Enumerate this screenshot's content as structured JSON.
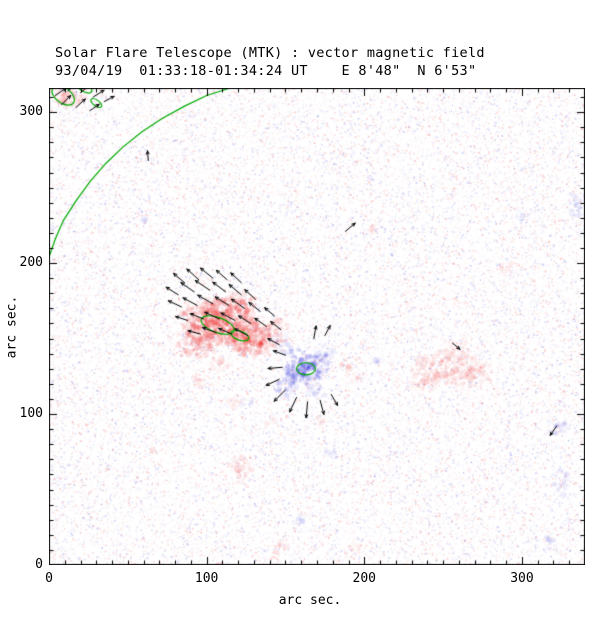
{
  "chart_data": {
    "type": "heatmap",
    "title": "Solar Flare Telescope (MTK) : vector magnetic field",
    "subtitle": "93/04/19  01:33:18-01:34:24 UT    E 8'48\"  N 6'53\"",
    "xlabel": "arc sec.",
    "ylabel": "arc sec.",
    "xlim": [
      0,
      340
    ],
    "ylim": [
      0,
      316
    ],
    "xticks": [
      0,
      100,
      200,
      300
    ],
    "yticks": [
      0,
      100,
      200,
      300
    ],
    "minor_tick_step": 10,
    "major_tick_step": 100,
    "colors": {
      "background": "#ffffff",
      "positive_polarity": "#ee2222",
      "negative_polarity": "#3535dd",
      "contour": "#00aa00",
      "vectors": "#000000",
      "axis": "#000000"
    },
    "noise": {
      "count": 30000,
      "max_alpha": 0.22,
      "dark_count": 2200
    },
    "positive_regions": [
      [
        108,
        161,
        23,
        15,
        1.0
      ],
      [
        130,
        150,
        17,
        11,
        0.95
      ],
      [
        94,
        147,
        13,
        9,
        0.7
      ],
      [
        120,
        172,
        13,
        8,
        0.65
      ],
      [
        147,
        160,
        6,
        5,
        0.5
      ],
      [
        107,
        133,
        7,
        5,
        0.45
      ],
      [
        96,
        122,
        6,
        5,
        0.4
      ],
      [
        118,
        108,
        5,
        4,
        0.35
      ],
      [
        140,
        96,
        4,
        3,
        0.3
      ],
      [
        252,
        131,
        21,
        12,
        0.5
      ],
      [
        269,
        127,
        12,
        9,
        0.45
      ],
      [
        238,
        121,
        10,
        8,
        0.4
      ],
      [
        258,
        143,
        9,
        6,
        0.4
      ],
      [
        293,
        197,
        8,
        5,
        0.35
      ],
      [
        121,
        64,
        7,
        9,
        0.5
      ],
      [
        146,
        13,
        6,
        5,
        0.45
      ],
      [
        194,
        11,
        5,
        4,
        0.4
      ],
      [
        66,
        76,
        3,
        3,
        0.35
      ],
      [
        12,
        310,
        11,
        7,
        0.6
      ],
      [
        27,
        317,
        7,
        4,
        0.5
      ],
      [
        188,
        131,
        5,
        4,
        0.4
      ],
      [
        196,
        124,
        4,
        3,
        0.35
      ],
      [
        172,
        95,
        4,
        3,
        0.3
      ],
      [
        205,
        222,
        4,
        3,
        0.3
      ]
    ],
    "negative_regions": [
      [
        163,
        130,
        13,
        10,
        1.0
      ],
      [
        151,
        118,
        8,
        7,
        0.6
      ],
      [
        174,
        140,
        8,
        6,
        0.55
      ],
      [
        153,
        143,
        6,
        5,
        0.5
      ],
      [
        146,
        150,
        5,
        4,
        0.45
      ],
      [
        170,
        115,
        6,
        5,
        0.5
      ],
      [
        125,
        108,
        4,
        3,
        0.35
      ],
      [
        159,
        30,
        5,
        4,
        0.4
      ],
      [
        178,
        73,
        4,
        4,
        0.35
      ],
      [
        323,
        92,
        6,
        6,
        0.5
      ],
      [
        325,
        55,
        5,
        8,
        0.45
      ],
      [
        318,
        16,
        5,
        5,
        0.4
      ],
      [
        334,
        238,
        5,
        8,
        0.45
      ],
      [
        300,
        232,
        4,
        4,
        0.3
      ],
      [
        61,
        229,
        4,
        3,
        0.25
      ],
      [
        207,
        135,
        4,
        3,
        0.3
      ]
    ],
    "faint_regions": [
      [
        232,
        178,
        24,
        14,
        0.12,
        "pos"
      ],
      [
        60,
        120,
        22,
        16,
        0.08,
        "pos"
      ],
      [
        200,
        60,
        20,
        14,
        0.08,
        "pos"
      ],
      [
        300,
        120,
        18,
        12,
        0.08,
        "pos"
      ],
      [
        90,
        260,
        25,
        18,
        0.06,
        "pos"
      ],
      [
        260,
        260,
        28,
        18,
        0.05,
        "neg"
      ]
    ],
    "vectors_xyal": [
      [
        86,
        187,
        140,
        9
      ],
      [
        95,
        189,
        138,
        10
      ],
      [
        104,
        190,
        141,
        10
      ],
      [
        113,
        189,
        139,
        9
      ],
      [
        122,
        187,
        137,
        9
      ],
      [
        82,
        179,
        148,
        9
      ],
      [
        92,
        181,
        145,
        10
      ],
      [
        102,
        182,
        146,
        11
      ],
      [
        112,
        181,
        143,
        10
      ],
      [
        122,
        179,
        140,
        10
      ],
      [
        131,
        176,
        138,
        9
      ],
      [
        84,
        171,
        155,
        9
      ],
      [
        94,
        172,
        152,
        10
      ],
      [
        104,
        173,
        150,
        11
      ],
      [
        114,
        172,
        148,
        10
      ],
      [
        124,
        170,
        145,
        10
      ],
      [
        134,
        168,
        142,
        9
      ],
      [
        143,
        165,
        140,
        8
      ],
      [
        88,
        162,
        162,
        8
      ],
      [
        98,
        163,
        158,
        9
      ],
      [
        108,
        163,
        155,
        10
      ],
      [
        118,
        162,
        152,
        10
      ],
      [
        128,
        160,
        148,
        9
      ],
      [
        138,
        158,
        145,
        9
      ],
      [
        147,
        156,
        142,
        8
      ],
      [
        96,
        153,
        165,
        8
      ],
      [
        106,
        154,
        160,
        9
      ],
      [
        116,
        153,
        157,
        9
      ],
      [
        126,
        152,
        152,
        9
      ],
      [
        148,
        131,
        185,
        9
      ],
      [
        146,
        123,
        205,
        9
      ],
      [
        150,
        116,
        225,
        10
      ],
      [
        157,
        111,
        245,
        10
      ],
      [
        164,
        108,
        265,
        10
      ],
      [
        172,
        109,
        285,
        9
      ],
      [
        179,
        113,
        300,
        8
      ],
      [
        150,
        139,
        160,
        8
      ],
      [
        146,
        146,
        152,
        8
      ],
      [
        168,
        150,
        80,
        8
      ],
      [
        175,
        152,
        62,
        7
      ],
      [
        188,
        221,
        40,
        8
      ],
      [
        256,
        147,
        320,
        6
      ],
      [
        322,
        92,
        235,
        7
      ],
      [
        63,
        268,
        95,
        6
      ],
      [
        4,
        311,
        35,
        8
      ],
      [
        12,
        314,
        40,
        9
      ],
      [
        20,
        313,
        38,
        9
      ],
      [
        28,
        310,
        32,
        8
      ],
      [
        8,
        305,
        45,
        8
      ],
      [
        17,
        303,
        42,
        8
      ],
      [
        26,
        301,
        35,
        7
      ],
      [
        35,
        307,
        28,
        7
      ],
      [
        2,
        319,
        30,
        7
      ],
      [
        11,
        320,
        36,
        7
      ]
    ],
    "limb_contour": [
      [
        115,
        316
      ],
      [
        100,
        311
      ],
      [
        86,
        304
      ],
      [
        72,
        296
      ],
      [
        59,
        287
      ],
      [
        47,
        277
      ],
      [
        36,
        266
      ],
      [
        26,
        254
      ],
      [
        17,
        241
      ],
      [
        9,
        228
      ],
      [
        4,
        216
      ],
      [
        0,
        204
      ]
    ],
    "spot_contours": [
      [
        107,
        159,
        11,
        5,
        -20
      ],
      [
        121,
        152,
        6,
        3,
        -20
      ],
      [
        163,
        130,
        6,
        4,
        0
      ],
      [
        9,
        311,
        8,
        5,
        -35
      ],
      [
        22,
        317,
        6,
        3,
        -35
      ],
      [
        30,
        306,
        4,
        2,
        -35
      ]
    ]
  }
}
